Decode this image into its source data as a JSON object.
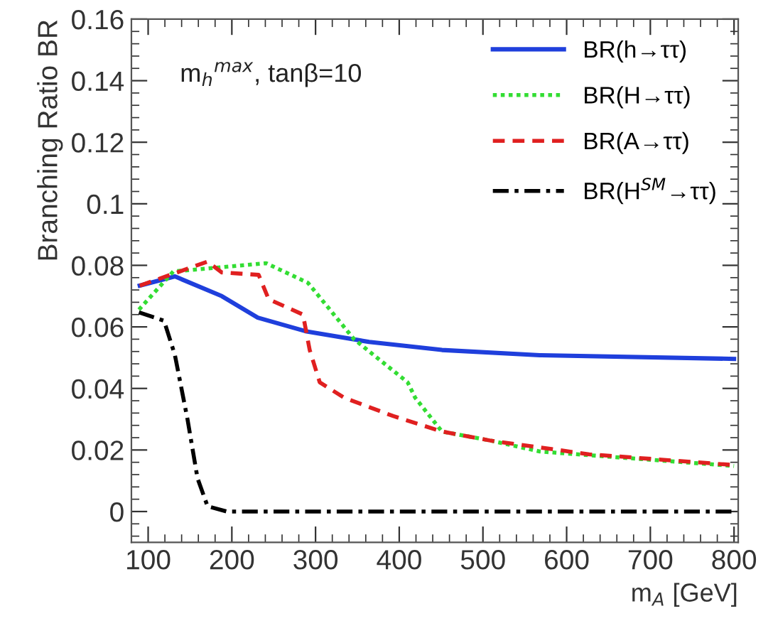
{
  "chart_data": {
    "type": "line",
    "xlabel": "m$_{A}$ [GeV]",
    "ylabel": "Branching Ratio BR",
    "annotations": [
      "m$_{h}$$^{max}$, tanβ=10"
    ],
    "xlim": [
      80,
      805
    ],
    "ylim": [
      -0.01,
      0.16
    ],
    "xticks": [
      100,
      200,
      300,
      400,
      500,
      600,
      700,
      800
    ],
    "yticks": [
      0,
      0.02,
      0.04,
      0.06,
      0.08,
      0.1,
      0.12,
      0.14,
      0.16
    ],
    "grid": false,
    "legend": "top right",
    "series": [
      {
        "name": "BR(h→ττ)",
        "color": "#1f3fdc",
        "line_style": "solid",
        "x": [
          90,
          132,
          188,
          231,
          288,
          364,
          451,
          568,
          800
        ],
        "values": [
          0.0734,
          0.0764,
          0.07,
          0.063,
          0.0586,
          0.0551,
          0.0525,
          0.0508,
          0.0496
        ]
      },
      {
        "name": "BR(H→ττ)",
        "color": "#33dd33",
        "line_style": "dotted",
        "x": [
          89,
          130,
          241,
          291,
          346,
          410,
          419,
          451,
          510,
          568,
          800
        ],
        "values": [
          0.0656,
          0.078,
          0.0807,
          0.0743,
          0.056,
          0.042,
          0.037,
          0.026,
          0.023,
          0.0195,
          0.0148
        ]
      },
      {
        "name": "BR(A→ττ)",
        "color": "#e02020",
        "line_style": "dashed",
        "x": [
          90,
          171,
          188,
          232,
          244,
          285,
          293,
          305,
          334,
          393,
          451,
          510,
          627,
          800
        ],
        "values": [
          0.0734,
          0.0812,
          0.0777,
          0.0769,
          0.069,
          0.064,
          0.0525,
          0.042,
          0.037,
          0.031,
          0.026,
          0.023,
          0.0186,
          0.0151
        ]
      },
      {
        "name": "BR(H$^{SM}$→ττ)",
        "color": "#000000",
        "line_style": "dashdot",
        "x": [
          89,
          119,
          132,
          147,
          159,
          171,
          194,
          800
        ],
        "values": [
          0.0647,
          0.062,
          0.0508,
          0.03,
          0.0108,
          0.0017,
          0,
          0
        ]
      }
    ]
  }
}
